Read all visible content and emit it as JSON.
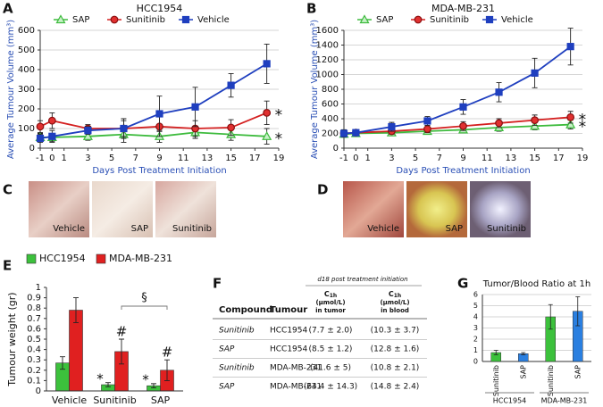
{
  "chart_data": [
    {
      "type": "line",
      "panel": "A",
      "title": "HCC1954",
      "ylabel": "Average Tumour Volume (mm³)",
      "xlabel": "Days Post Treatment Initiation",
      "x": [
        -1,
        0,
        3,
        6,
        9,
        12,
        15,
        18
      ],
      "xlim": [
        -1,
        19
      ],
      "xticks": [
        -1,
        0,
        1,
        3,
        5,
        7,
        9,
        11,
        13,
        15,
        17,
        19
      ],
      "ylim": [
        0,
        600
      ],
      "yticks": [
        0,
        100,
        200,
        300,
        400,
        500,
        600
      ],
      "grid": true,
      "series": [
        {
          "name": "SAP",
          "color": "#3dbb3d",
          "marker": "triangle",
          "values": [
            55,
            55,
            60,
            70,
            60,
            80,
            70,
            60
          ],
          "errors": [
            20,
            20,
            20,
            40,
            30,
            30,
            30,
            40
          ]
        },
        {
          "name": "Sunitinib",
          "color": "#d42020",
          "marker": "circle",
          "values": [
            110,
            140,
            100,
            100,
            110,
            100,
            105,
            180
          ],
          "errors": [
            30,
            40,
            20,
            40,
            50,
            40,
            40,
            60
          ]
        },
        {
          "name": "Vehicle",
          "color": "#1f3fbf",
          "marker": "square",
          "values": [
            50,
            60,
            90,
            100,
            175,
            210,
            320,
            430
          ],
          "errors": [
            20,
            30,
            20,
            50,
            90,
            100,
            60,
            100
          ]
        }
      ],
      "annotations": [
        "*",
        "*"
      ]
    },
    {
      "type": "line",
      "panel": "B",
      "title": "MDA-MB-231",
      "ylabel": "Average Tumour Volume (mm³)",
      "xlabel": "Days Post Treatment Initiation",
      "x": [
        -1,
        0,
        3,
        6,
        9,
        12,
        15,
        18
      ],
      "xlim": [
        -1,
        19
      ],
      "xticks": [
        -1,
        0,
        1,
        3,
        5,
        7,
        9,
        11,
        13,
        15,
        17,
        19
      ],
      "ylim": [
        0,
        1600
      ],
      "yticks": [
        0,
        200,
        400,
        600,
        800,
        1000,
        1200,
        1400,
        1600
      ],
      "grid": true,
      "series": [
        {
          "name": "SAP",
          "color": "#3dbb3d",
          "marker": "triangle",
          "values": [
            190,
            200,
            210,
            230,
            250,
            280,
            300,
            320
          ],
          "errors": [
            30,
            30,
            40,
            40,
            40,
            50,
            50,
            60
          ]
        },
        {
          "name": "Sunitinib",
          "color": "#d42020",
          "marker": "circle",
          "values": [
            200,
            210,
            230,
            260,
            300,
            340,
            380,
            420
          ],
          "errors": [
            30,
            40,
            40,
            50,
            60,
            60,
            70,
            80
          ]
        },
        {
          "name": "Vehicle",
          "color": "#1f3fbf",
          "marker": "square",
          "values": [
            200,
            210,
            290,
            370,
            560,
            760,
            1020,
            1380
          ],
          "errors": [
            50,
            40,
            60,
            60,
            100,
            130,
            200,
            250
          ]
        }
      ],
      "annotations": [
        "*",
        "*"
      ]
    },
    {
      "type": "bar",
      "panel": "E",
      "ylabel": "Tumour weight (gr)",
      "categories": [
        "Vehicle",
        "Sunitinib",
        "SAP"
      ],
      "ylim": [
        0,
        1
      ],
      "yticks": [
        0,
        0.1,
        0.2,
        0.3,
        0.4,
        0.5,
        0.6,
        0.7,
        0.8,
        0.9,
        1
      ],
      "series": [
        {
          "name": "HCC1954",
          "color": "#3cc13c",
          "values": [
            0.27,
            0.06,
            0.05
          ],
          "errors": [
            0.06,
            0.02,
            0.02
          ],
          "marks": [
            null,
            "*",
            "*"
          ]
        },
        {
          "name": "MDA-MB-231",
          "color": "#e02020",
          "values": [
            0.78,
            0.38,
            0.2
          ],
          "errors": [
            0.12,
            0.12,
            0.1
          ],
          "marks": [
            null,
            "#",
            "#"
          ]
        }
      ],
      "bracket_label": "§"
    },
    {
      "type": "grouped-bar",
      "panel": "G",
      "title": "Tumor/Blood Ratio at 1h",
      "categories": [
        "Sunitinib",
        "SAP",
        "Sunitinib",
        "SAP"
      ],
      "groups": [
        "HCC1954",
        "MDA-MB-231"
      ],
      "values": [
        0.8,
        0.7,
        4.0,
        4.5
      ],
      "errors": [
        0.2,
        0.1,
        1.1,
        1.3
      ],
      "colors": [
        "#3cc13c",
        "#2a7fe0",
        "#3cc13c",
        "#2a7fe0"
      ],
      "ylim": [
        0,
        6
      ],
      "yticks": [
        0,
        1,
        2,
        3,
        4,
        5,
        6
      ],
      "grid": true
    }
  ],
  "photos": [
    {
      "panel": "C",
      "labels": [
        "Vehicle",
        "SAP",
        "Sunitinib"
      ]
    },
    {
      "panel": "D",
      "labels": [
        "Vehicle",
        "SAP",
        "Sunitinib"
      ]
    }
  ],
  "table": {
    "panel": "F",
    "superheader": "d18 post treatment initiation",
    "columns": [
      "Compound",
      "Tumour",
      {
        "symbol": "C",
        "sub": "1h",
        "unit": "(μmol/L)",
        "where": "in tumor"
      },
      {
        "symbol": "C",
        "sub": "1h",
        "unit": "(μmol/L)",
        "where": "in blood"
      }
    ],
    "rows": [
      [
        "Sunitinib",
        "HCC1954",
        "(7.7 ± 2.0)",
        "(10.3 ± 3.7)"
      ],
      [
        "SAP",
        "HCC1954",
        "(8.5 ± 1.2)",
        "(12.8 ± 1.6)"
      ],
      [
        "Sunitinib",
        "MDA-MB-231",
        "(41.6 ± 5)",
        "(10.8 ± 2.1)"
      ],
      [
        "SAP",
        "MDA-MB-231",
        "(64.4 ± 14.3)",
        "(14.8 ± 2.4)"
      ]
    ]
  }
}
